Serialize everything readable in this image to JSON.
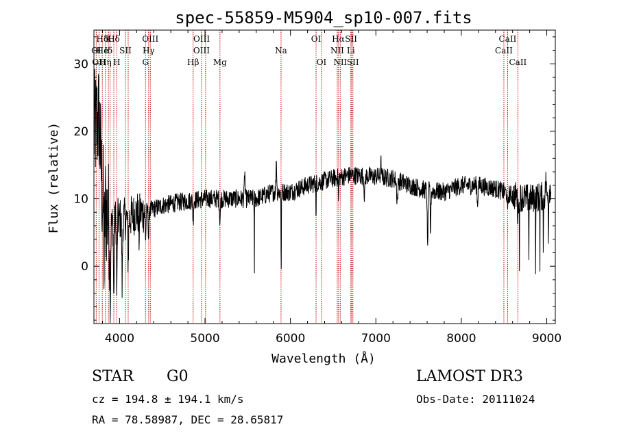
{
  "chart_data": {
    "type": "line",
    "title": "spec-55859-M5904_sp10-007.fits",
    "xlabel": "Wavelength (Å)",
    "ylabel": "Flux (relative)",
    "xlim": [
      3700,
      9100
    ],
    "ylim": [
      -8.5,
      35
    ],
    "x_ticks": [
      4000,
      5000,
      6000,
      7000,
      8000,
      9000
    ],
    "y_ticks": [
      0,
      10,
      20,
      30
    ],
    "spectrum_knots": [
      [
        3700,
        20
      ],
      [
        3760,
        22
      ],
      [
        3800,
        10
      ],
      [
        3850,
        8
      ],
      [
        3900,
        6
      ],
      [
        3950,
        7
      ],
      [
        4000,
        7
      ],
      [
        4100,
        7
      ],
      [
        4200,
        8
      ],
      [
        4300,
        8
      ],
      [
        4400,
        8.5
      ],
      [
        4500,
        9
      ],
      [
        4700,
        9.5
      ],
      [
        5000,
        10
      ],
      [
        5300,
        10
      ],
      [
        5600,
        10
      ],
      [
        5800,
        11
      ],
      [
        6000,
        11
      ],
      [
        6200,
        12
      ],
      [
        6500,
        13
      ],
      [
        6700,
        13.5
      ],
      [
        7000,
        13.3
      ],
      [
        7200,
        13
      ],
      [
        7400,
        12
      ],
      [
        7600,
        11.2
      ],
      [
        7800,
        11
      ],
      [
        8000,
        12
      ],
      [
        8200,
        12
      ],
      [
        8400,
        11.5
      ],
      [
        8600,
        10.5
      ],
      [
        8800,
        10
      ],
      [
        9000,
        10.5
      ],
      [
        9050,
        12
      ]
    ],
    "absorption_features": [
      {
        "w": 3820,
        "d": 10,
        "s": 6
      },
      {
        "w": 3890,
        "d": 10,
        "s": 7
      },
      {
        "w": 3933,
        "d": 12,
        "s": 6
      },
      {
        "w": 3968,
        "d": 11,
        "s": 6
      },
      {
        "w": 4030,
        "d": 10,
        "s": 6
      },
      {
        "w": 4101,
        "d": 6,
        "s": 7
      },
      {
        "w": 4227,
        "d": 4,
        "s": 6
      },
      {
        "w": 4305,
        "d": 4,
        "s": 6
      },
      {
        "w": 4340,
        "d": 4,
        "s": 6
      },
      {
        "w": 4861,
        "d": 3,
        "s": 6
      },
      {
        "w": 5175,
        "d": 3,
        "s": 8
      },
      {
        "w": 5577,
        "d": 19,
        "s": 1.5
      },
      {
        "w": 5892,
        "d": 13,
        "s": 3
      },
      {
        "w": 6300,
        "d": 6,
        "s": 3
      },
      {
        "w": 6563,
        "d": 4,
        "s": 3
      },
      {
        "w": 6867,
        "d": 3,
        "s": 8
      },
      {
        "w": 7250,
        "d": 3,
        "s": 10
      },
      {
        "w": 7605,
        "d": 9,
        "s": 6
      },
      {
        "w": 7640,
        "d": 6,
        "s": 6
      },
      {
        "w": 8190,
        "d": 3,
        "s": 6
      },
      {
        "w": 8542,
        "d": 3,
        "s": 6
      },
      {
        "w": 8662,
        "d": 3,
        "s": 6
      },
      {
        "w": 8680,
        "d": 12,
        "s": 2
      },
      {
        "w": 8790,
        "d": 11,
        "s": 2
      },
      {
        "w": 8870,
        "d": 12,
        "s": 2
      },
      {
        "w": 8920,
        "d": 10,
        "s": 2
      },
      {
        "w": 8960,
        "d": 12,
        "s": 2
      },
      {
        "w": 9020,
        "d": 10,
        "s": 2
      }
    ],
    "emission_features": [
      {
        "w": 5465,
        "h": 4,
        "s": 6
      },
      {
        "w": 5835,
        "h": 5,
        "s": 6
      },
      {
        "w": 7060,
        "h": 2,
        "s": 6
      },
      {
        "w": 8990,
        "h": 3,
        "s": 5
      }
    ],
    "noise_seed": 12345,
    "line_markers": [
      {
        "label": "Hδ",
        "w": 3798,
        "row": 0
      },
      {
        "label": "K",
        "w": 3870,
        "row": 0
      },
      {
        "label": "Hδ",
        "w": 3932,
        "row": 0
      },
      {
        "label": "OIII",
        "w": 4360,
        "row": 0
      },
      {
        "label": "OIII",
        "w": 4960,
        "row": 0
      },
      {
        "label": "OI",
        "w": 6300,
        "row": 0
      },
      {
        "label": "Hα",
        "w": 6560,
        "row": 0
      },
      {
        "label": "SII",
        "w": 6710,
        "row": 0
      },
      {
        "label": "CaII",
        "w": 8542,
        "row": 0
      },
      {
        "label": "OI",
        "w": 3727,
        "row": 1
      },
      {
        "label": "He",
        "w": 3800,
        "row": 1
      },
      {
        "label": "Iδ",
        "w": 3870,
        "row": 1
      },
      {
        "label": "SII",
        "w": 4069,
        "row": 1
      },
      {
        "label": "Hγ",
        "w": 4340,
        "row": 1
      },
      {
        "label": "OIII",
        "w": 4959,
        "row": 1
      },
      {
        "label": "Na",
        "w": 5890,
        "row": 1
      },
      {
        "label": "NII",
        "w": 6548,
        "row": 1
      },
      {
        "label": "Li",
        "w": 6707,
        "row": 1
      },
      {
        "label": "CaII",
        "w": 8498,
        "row": 1
      },
      {
        "label": "OH",
        "w": 3760,
        "row": 2
      },
      {
        "label": "Hη",
        "w": 3835,
        "row": 2
      },
      {
        "label": "H",
        "w": 3968,
        "row": 2
      },
      {
        "label": "G",
        "w": 4304,
        "row": 2
      },
      {
        "label": "Hβ",
        "w": 4861,
        "row": 2
      },
      {
        "label": "Mg",
        "w": 5175,
        "row": 2
      },
      {
        "label": "OI",
        "w": 6364,
        "row": 2
      },
      {
        "label": "NII",
        "w": 6583,
        "row": 2
      },
      {
        "label": "SII",
        "w": 6731,
        "row": 2
      },
      {
        "label": "CaII",
        "w": 8662,
        "row": 2
      }
    ],
    "marker_lines_w": [
      3727,
      3760,
      3798,
      3835,
      3870,
      3889,
      3933,
      3968,
      4069,
      4101,
      4304,
      4340,
      4360,
      4861,
      4959,
      5007,
      5175,
      5890,
      6300,
      6364,
      6548,
      6563,
      6583,
      6707,
      6717,
      6731,
      8498,
      8542,
      8662
    ],
    "marker_color": "#cc0000",
    "trace_color": "#000000"
  },
  "info": {
    "object_class": "STAR",
    "subclass": "G0",
    "survey": "LAMOST DR3",
    "cz": "cz = 194.8 ± 194.1 km/s",
    "obs_date": "Obs-Date: 20111024",
    "coords": "RA =  78.58987, DEC =  28.65817"
  }
}
